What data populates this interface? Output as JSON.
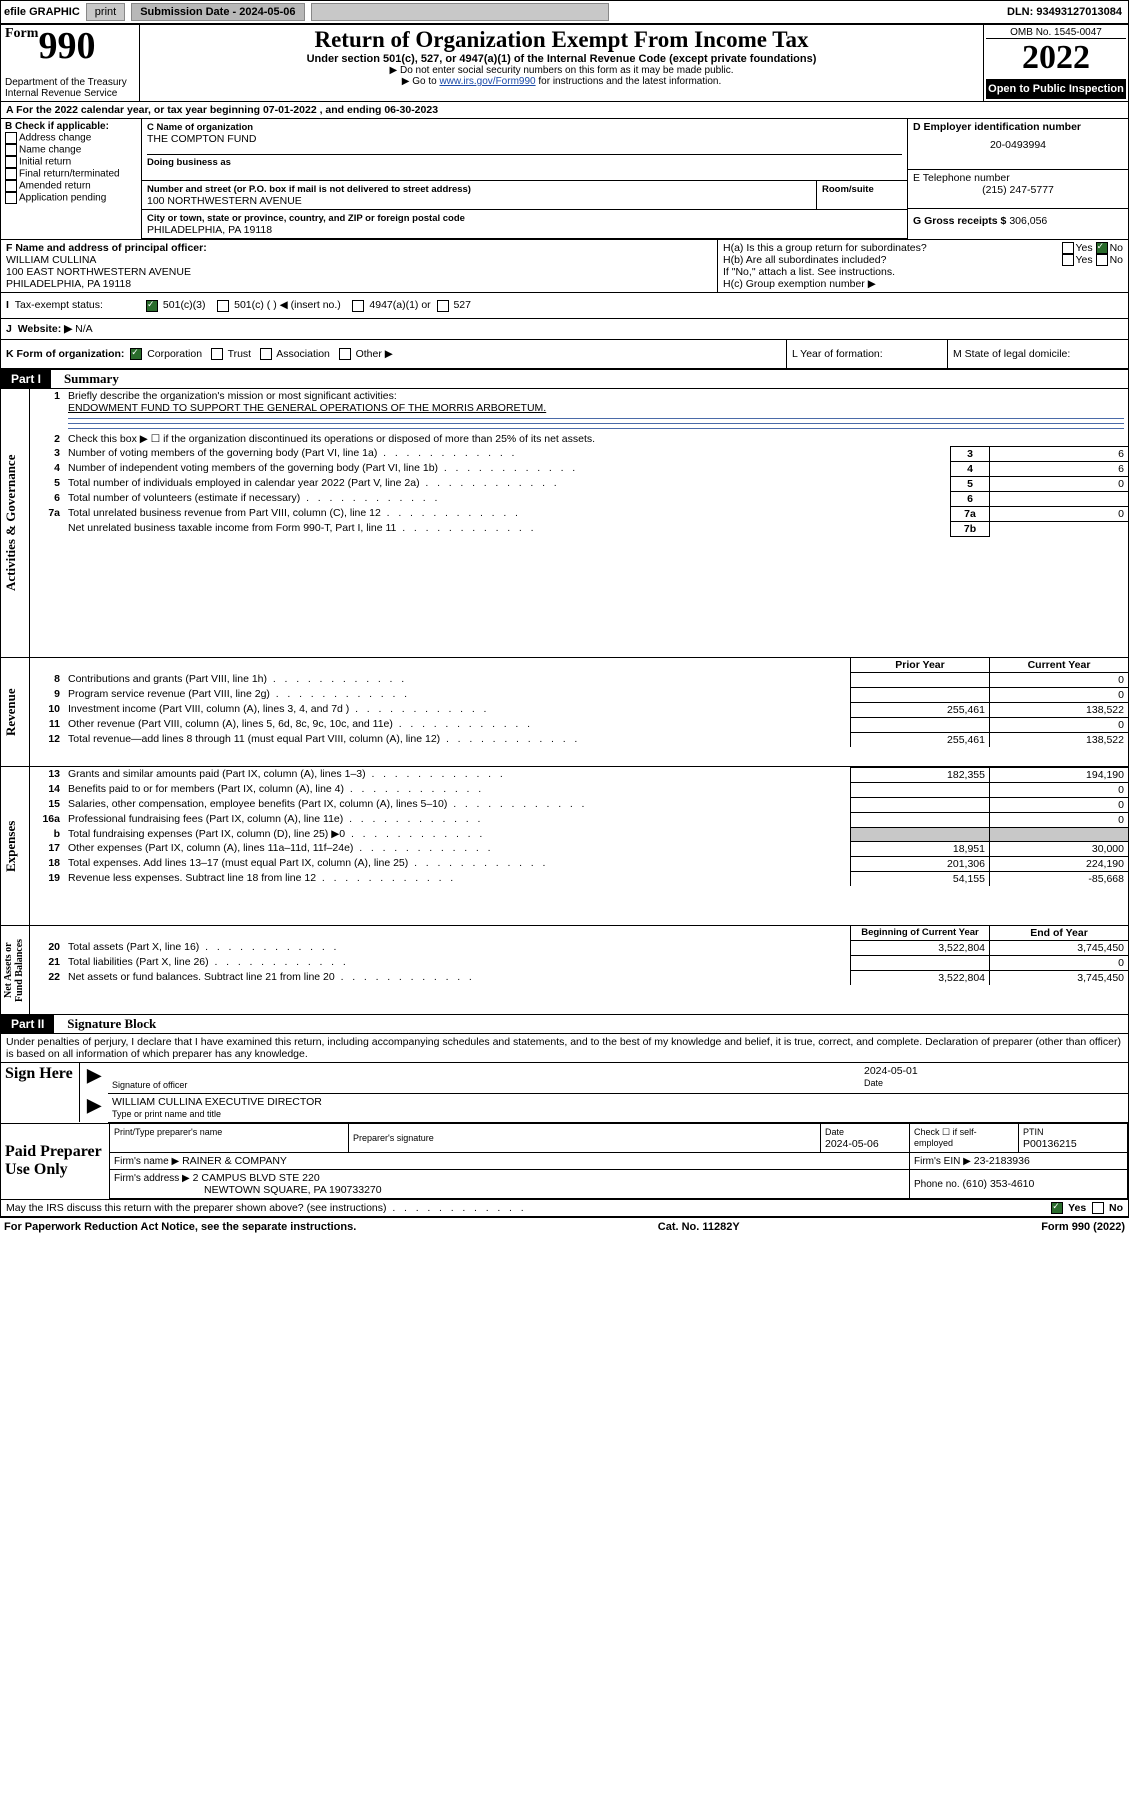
{
  "toolbar": {
    "efile": "efile GRAPHIC",
    "print": "print",
    "subdate_label": "Submission Date - 2024-05-06",
    "dln": "DLN: 93493127013084"
  },
  "header": {
    "form_prefix": "Form",
    "form_number": "990",
    "title": "Return of Organization Exempt From Income Tax",
    "subtitle": "Under section 501(c), 527, or 4947(a)(1) of the Internal Revenue Code (except private foundations)",
    "note1": "▶ Do not enter social security numbers on this form as it may be made public.",
    "note2_prefix": "▶ Go to ",
    "note2_link": "www.irs.gov/Form990",
    "note2_suffix": " for instructions and the latest information.",
    "dept": "Department of the Treasury",
    "irs": "Internal Revenue Service",
    "omb": "OMB No. 1545-0047",
    "year": "2022",
    "open": "Open to Public Inspection"
  },
  "lineA": "A For the 2022 calendar year, or tax year beginning 07-01-2022   , and ending 06-30-2023",
  "blockB": {
    "title": "B Check if applicable:",
    "items": [
      "Address change",
      "Name change",
      "Initial return",
      "Final return/terminated",
      "Amended return",
      "Application pending"
    ]
  },
  "blockC": {
    "name_label": "C Name of organization",
    "name": "THE COMPTON FUND",
    "dba_label": "Doing business as",
    "street_label": "Number and street (or P.O. box if mail is not delivered to street address)",
    "room_label": "Room/suite",
    "street": "100 NORTHWESTERN AVENUE",
    "city_label": "City or town, state or province, country, and ZIP or foreign postal code",
    "city": "PHILADELPHIA, PA  19118"
  },
  "blockD": {
    "label": "D Employer identification number",
    "value": "20-0493994"
  },
  "blockE": {
    "label": "E Telephone number",
    "value": "(215) 247-5777"
  },
  "blockG": {
    "label": "G Gross receipts $",
    "value": "306,056"
  },
  "blockF": {
    "label": "F Name and address of principal officer:",
    "name": "WILLIAM CULLINA",
    "addr1": "100 EAST NORTHWESTERN AVENUE",
    "addr2": "PHILADELPHIA, PA  19118"
  },
  "blockH": {
    "ha": "H(a)  Is this a group return for subordinates?",
    "hb": "H(b)  Are all subordinates included?",
    "hb_note": "If \"No,\" attach a list. See instructions.",
    "hc": "H(c)  Group exemption number ▶",
    "yes": "Yes",
    "no": "No"
  },
  "lineI": {
    "label": "Tax-exempt status:",
    "opts": [
      "501(c)(3)",
      "501(c) (   ) ◀ (insert no.)",
      "4947(a)(1) or",
      "527"
    ]
  },
  "lineJ": {
    "label": "Website: ▶",
    "value": "N/A"
  },
  "lineK": {
    "label": "K Form of organization:",
    "opts": [
      "Corporation",
      "Trust",
      "Association",
      "Other ▶"
    ]
  },
  "lineL": "L Year of formation:",
  "lineM": "M State of legal domicile:",
  "part1": {
    "title": "Part I",
    "name": "Summary",
    "q1_label": "Briefly describe the organization's mission or most significant activities:",
    "q1_text": "ENDOWMENT FUND TO SUPPORT THE GENERAL OPERATIONS OF THE MORRIS ARBORETUM.",
    "q2": "Check this box ▶ ☐  if the organization discontinued its operations or disposed of more than 25% of its net assets.",
    "rows_gov": [
      {
        "n": "3",
        "t": "Number of voting members of the governing body (Part VI, line 1a)",
        "v": "6"
      },
      {
        "n": "4",
        "t": "Number of independent voting members of the governing body (Part VI, line 1b)",
        "v": "6"
      },
      {
        "n": "5",
        "t": "Total number of individuals employed in calendar year 2022 (Part V, line 2a)",
        "v": "0"
      },
      {
        "n": "6",
        "t": "Total number of volunteers (estimate if necessary)",
        "v": ""
      },
      {
        "n": "7a",
        "t": "Total unrelated business revenue from Part VIII, column (C), line 12",
        "v": "0"
      },
      {
        "n": "7b",
        "t": "Net unrelated business taxable income from Form 990-T, Part I, line 11",
        "v": ""
      }
    ],
    "col_headers": {
      "prior": "Prior Year",
      "current": "Current Year"
    },
    "rows_rev": [
      {
        "n": "8",
        "t": "Contributions and grants (Part VIII, line 1h)",
        "p": "",
        "c": "0"
      },
      {
        "n": "9",
        "t": "Program service revenue (Part VIII, line 2g)",
        "p": "",
        "c": "0"
      },
      {
        "n": "10",
        "t": "Investment income (Part VIII, column (A), lines 3, 4, and 7d )",
        "p": "255,461",
        "c": "138,522"
      },
      {
        "n": "11",
        "t": "Other revenue (Part VIII, column (A), lines 5, 6d, 8c, 9c, 10c, and 11e)",
        "p": "",
        "c": "0"
      },
      {
        "n": "12",
        "t": "Total revenue—add lines 8 through 11 (must equal Part VIII, column (A), line 12)",
        "p": "255,461",
        "c": "138,522"
      }
    ],
    "rows_exp": [
      {
        "n": "13",
        "t": "Grants and similar amounts paid (Part IX, column (A), lines 1–3)",
        "p": "182,355",
        "c": "194,190"
      },
      {
        "n": "14",
        "t": "Benefits paid to or for members (Part IX, column (A), line 4)",
        "p": "",
        "c": "0"
      },
      {
        "n": "15",
        "t": "Salaries, other compensation, employee benefits (Part IX, column (A), lines 5–10)",
        "p": "",
        "c": "0"
      },
      {
        "n": "16a",
        "t": "Professional fundraising fees (Part IX, column (A), line 11e)",
        "p": "",
        "c": "0"
      },
      {
        "n": "b",
        "t": "Total fundraising expenses (Part IX, column (D), line 25) ▶0",
        "p": "grey",
        "c": "grey"
      },
      {
        "n": "17",
        "t": "Other expenses (Part IX, column (A), lines 11a–11d, 11f–24e)",
        "p": "18,951",
        "c": "30,000"
      },
      {
        "n": "18",
        "t": "Total expenses. Add lines 13–17 (must equal Part IX, column (A), line 25)",
        "p": "201,306",
        "c": "224,190"
      },
      {
        "n": "19",
        "t": "Revenue less expenses. Subtract line 18 from line 12",
        "p": "54,155",
        "c": "-85,668"
      }
    ],
    "na_headers": {
      "begin": "Beginning of Current Year",
      "end": "End of Year"
    },
    "rows_na": [
      {
        "n": "20",
        "t": "Total assets (Part X, line 16)",
        "p": "3,522,804",
        "c": "3,745,450"
      },
      {
        "n": "21",
        "t": "Total liabilities (Part X, line 26)",
        "p": "",
        "c": "0"
      },
      {
        "n": "22",
        "t": "Net assets or fund balances. Subtract line 21 from line 20",
        "p": "3,522,804",
        "c": "3,745,450"
      }
    ],
    "vtabs": {
      "gov": "Activities & Governance",
      "rev": "Revenue",
      "exp": "Expenses",
      "na": "Net Assets or Fund Balances"
    }
  },
  "part2": {
    "title": "Part II",
    "name": "Signature Block",
    "decl": "Under penalties of perjury, I declare that I have examined this return, including accompanying schedules and statements, and to the best of my knowledge and belief, it is true, correct, and complete. Declaration of preparer (other than officer) is based on all information of which preparer has any knowledge.",
    "sign_here": "Sign Here",
    "sig_officer": "Signature of officer",
    "date_label": "Date",
    "sig_date": "2024-05-01",
    "officer_name": "WILLIAM CULLINA  EXECUTIVE DIRECTOR",
    "type_label": "Type or print name and title",
    "paid": "Paid Preparer Use Only",
    "prep_name_label": "Print/Type preparer's name",
    "prep_sig_label": "Preparer's signature",
    "prep_date_label": "Date",
    "prep_date": "2024-05-06",
    "check_label": "Check ☐ if self-employed",
    "ptin_label": "PTIN",
    "ptin": "P00136215",
    "firm_name_label": "Firm's name    ▶",
    "firm_name": "RAINER & COMPANY",
    "firm_ein_label": "Firm's EIN ▶",
    "firm_ein": "23-2183936",
    "firm_addr_label": "Firm's address ▶",
    "firm_addr1": "2 CAMPUS BLVD STE 220",
    "firm_addr2": "NEWTOWN SQUARE, PA  190733270",
    "phone_label": "Phone no.",
    "phone": "(610) 353-4610",
    "discuss": "May the IRS discuss this return with the preparer shown above? (see instructions)"
  },
  "footer": {
    "pra": "For Paperwork Reduction Act Notice, see the separate instructions.",
    "cat": "Cat. No. 11282Y",
    "form": "Form 990 (2022)"
  }
}
